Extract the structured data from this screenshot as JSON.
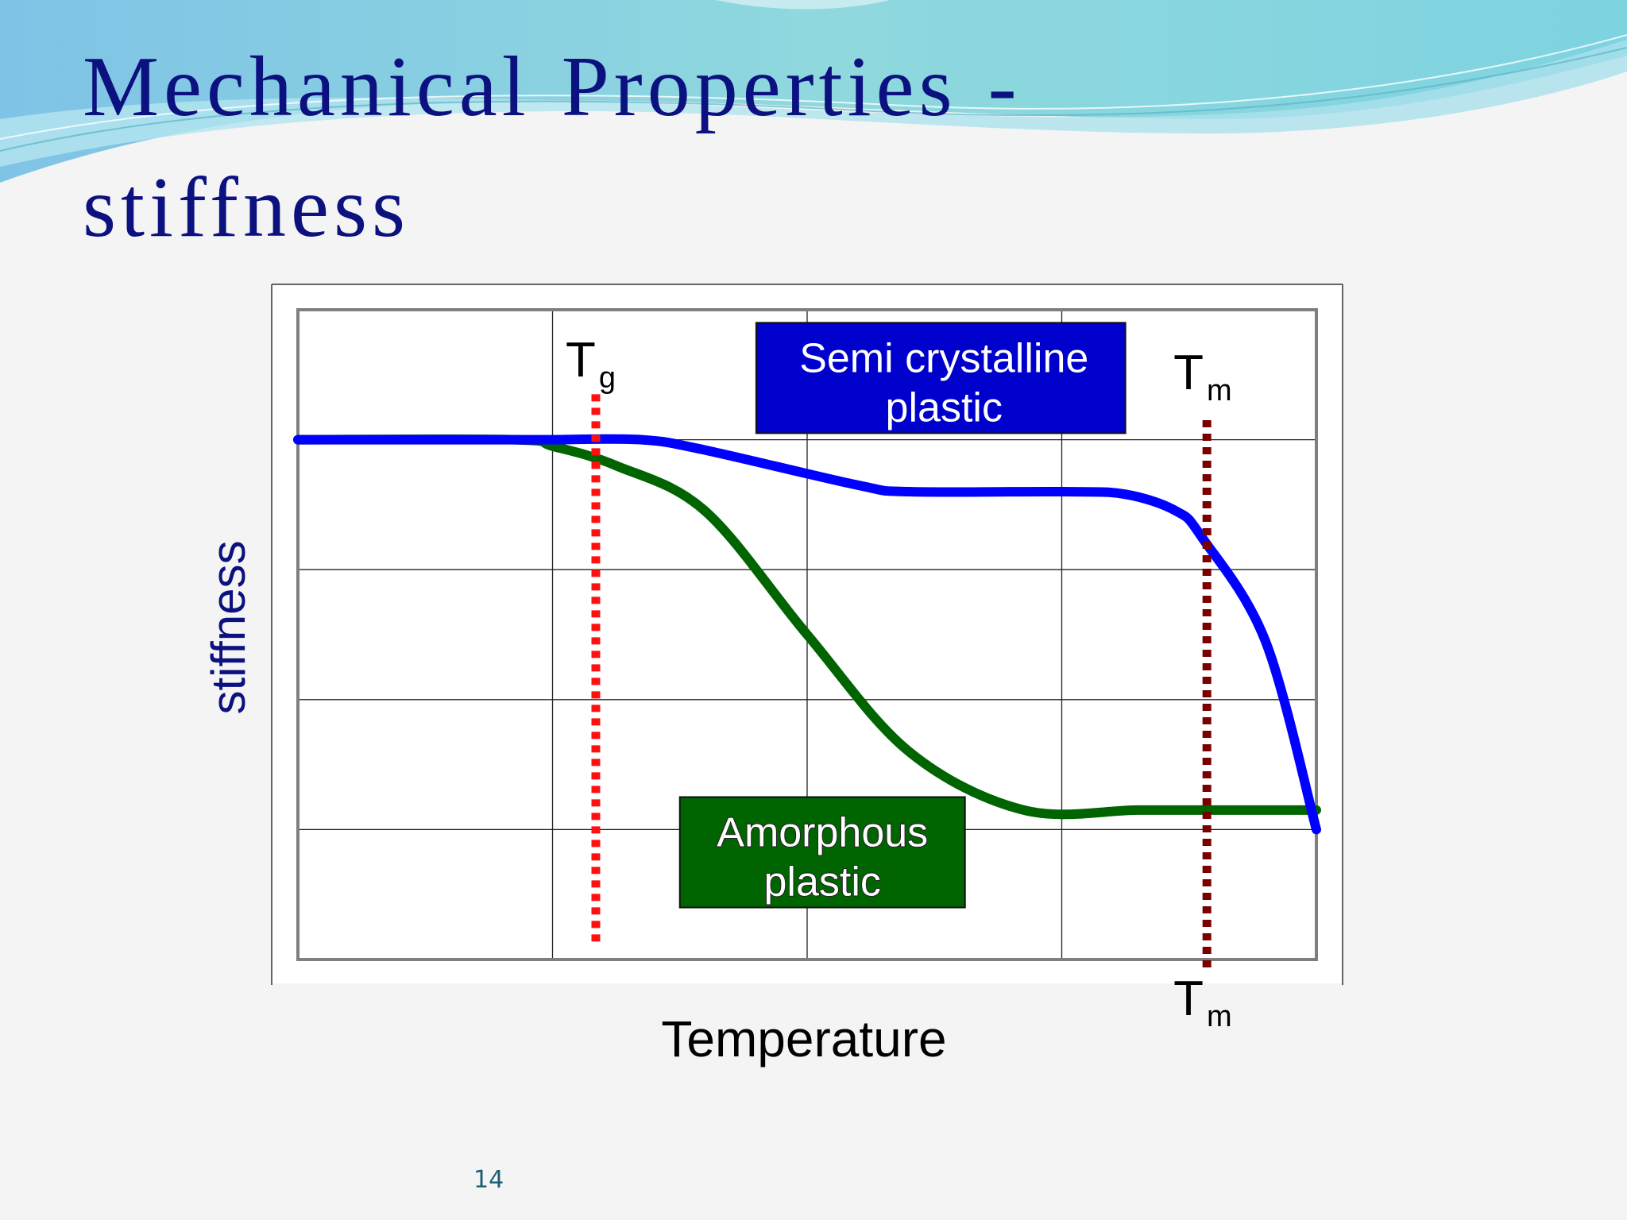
{
  "slide": {
    "title_line1": "Mechanical Properties  -",
    "title_line2": "stiffness",
    "page_number": "14"
  },
  "chart_data": {
    "type": "line",
    "title": "",
    "xlabel": "Temperature",
    "ylabel": "stiffness",
    "xlim": [
      0,
      4
    ],
    "ylim": [
      0,
      5
    ],
    "grid": true,
    "tick_labels_shown": false,
    "series": [
      {
        "name": "Semi crystalline plastic",
        "color": "#0000ff",
        "x": [
          0,
          0.8,
          1.0,
          1.35,
          1.6,
          2.2,
          2.4,
          3.0,
          3.25,
          3.45,
          3.55,
          3.8,
          4.0
        ],
        "y": [
          4.0,
          4.0,
          4.0,
          4.0,
          3.92,
          3.65,
          3.6,
          3.6,
          3.58,
          3.45,
          3.25,
          2.45,
          1.0
        ]
      },
      {
        "name": "Amorphous plastic",
        "color": "#006400",
        "x": [
          0,
          0.85,
          1.0,
          1.25,
          1.6,
          2.0,
          2.4,
          2.85,
          3.3,
          3.6,
          4.0
        ],
        "y": [
          4.0,
          4.0,
          3.95,
          3.8,
          3.45,
          2.5,
          1.6,
          1.15,
          1.15,
          1.15,
          1.15
        ]
      }
    ],
    "markers": [
      {
        "label": "T",
        "sub": "g",
        "x": 1.17,
        "color": "#ff1010",
        "y_top": 4.35,
        "y_bottom": 0.1
      },
      {
        "label": "T",
        "sub": "m",
        "x": 3.57,
        "color": "#7a0000",
        "y_top": 4.15,
        "y_bottom": -0.1
      }
    ],
    "annotations": [
      {
        "text_line1": "Semi crystalline",
        "text_line2": "plastic",
        "fill": "#0000cc",
        "text_color": "#ffffff",
        "x0": 1.8,
        "x1": 3.25,
        "y0": 4.05,
        "y1": 4.9
      },
      {
        "text_line1": "Amorphous",
        "text_line2": "plastic",
        "fill": "#006400",
        "text_color": "#ffffff",
        "x0": 1.5,
        "x1": 2.62,
        "y0": 0.4,
        "y1": 1.25
      }
    ],
    "tm_bottom_label": {
      "label": "T",
      "sub": "m"
    }
  }
}
